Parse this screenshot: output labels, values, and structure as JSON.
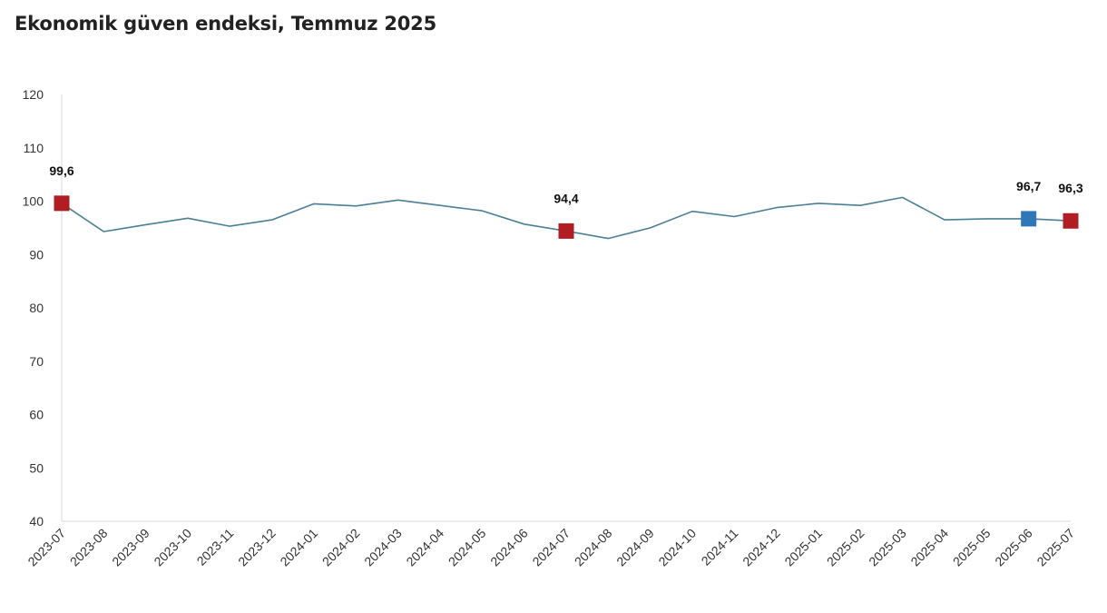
{
  "chart_data": {
    "type": "line",
    "title": "Ekonomik güven endeksi, Temmuz 2025",
    "xlabel": "",
    "ylabel": "",
    "ylim": [
      40,
      120
    ],
    "yticks": [
      40,
      50,
      60,
      70,
      80,
      90,
      100,
      110,
      120
    ],
    "grid": false,
    "legend": "none",
    "line_color": "#4a7f95",
    "marker_colors": {
      "red": "#b01e23",
      "blue": "#2f78b8"
    },
    "categories": [
      "2023-07",
      "2023-08",
      "2023-09",
      "2023-10",
      "2023-11",
      "2023-12",
      "2024-01",
      "2024-02",
      "2024-03",
      "2024-04",
      "2024-05",
      "2024-06",
      "2024-07",
      "2024-08",
      "2024-09",
      "2024-10",
      "2024-11",
      "2024-12",
      "2025-01",
      "2025-02",
      "2025-03",
      "2025-04",
      "2025-05",
      "2025-06",
      "2025-07"
    ],
    "series": [
      {
        "values": [
          99.6,
          94.3,
          95.6,
          96.8,
          95.3,
          96.5,
          99.5,
          99.1,
          100.2,
          99.2,
          98.2,
          95.7,
          94.4,
          93.0,
          95.0,
          98.1,
          97.1,
          98.8,
          99.6,
          99.2,
          100.7,
          96.5,
          96.7,
          96.7,
          96.3
        ]
      }
    ],
    "highlights": [
      {
        "category": "2023-07",
        "value": 99.6,
        "label": "99,6",
        "color": "red"
      },
      {
        "category": "2024-07",
        "value": 94.4,
        "label": "94,4",
        "color": "red"
      },
      {
        "category": "2025-06",
        "value": 96.7,
        "label": "96,7",
        "color": "blue"
      },
      {
        "category": "2025-07",
        "value": 96.3,
        "label": "96,3",
        "color": "red"
      }
    ]
  }
}
